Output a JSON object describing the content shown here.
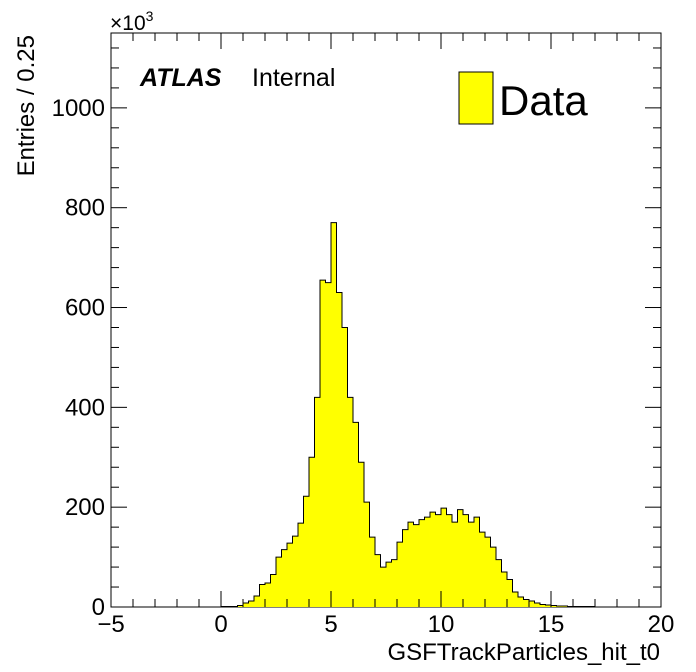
{
  "chart_data": {
    "type": "bar",
    "xlabel": "GSFTrackParticles_hit_t0",
    "ylabel": "Entries / 0.25",
    "y_multiplier": "×10",
    "y_multiplier_exp": "3",
    "xlim": [
      -5,
      20
    ],
    "ylim": [
      0,
      1150
    ],
    "bin_width": 0.25,
    "x_ticks": [
      -5,
      0,
      5,
      10,
      15,
      20
    ],
    "y_ticks": [
      0,
      200,
      400,
      600,
      800,
      1000
    ],
    "fill_color": "#ffff00",
    "line_color": "#000000",
    "atlas_label": "ATLAS",
    "atlas_sublabel": "Internal",
    "legend": {
      "entry": "Data",
      "placement": "top-right"
    },
    "bins_start": 0,
    "values": [
      1,
      1,
      1,
      3,
      8,
      12,
      22,
      45,
      48,
      65,
      100,
      115,
      128,
      142,
      168,
      222,
      300,
      420,
      655,
      650,
      770,
      630,
      560,
      420,
      370,
      290,
      210,
      140,
      105,
      80,
      90,
      95,
      130,
      155,
      170,
      165,
      175,
      180,
      190,
      185,
      198,
      185,
      170,
      195,
      185,
      170,
      180,
      150,
      140,
      120,
      95,
      70,
      55,
      30,
      20,
      15,
      12,
      8,
      5,
      4,
      3,
      2,
      2,
      1,
      1,
      1,
      1,
      1
    ]
  }
}
